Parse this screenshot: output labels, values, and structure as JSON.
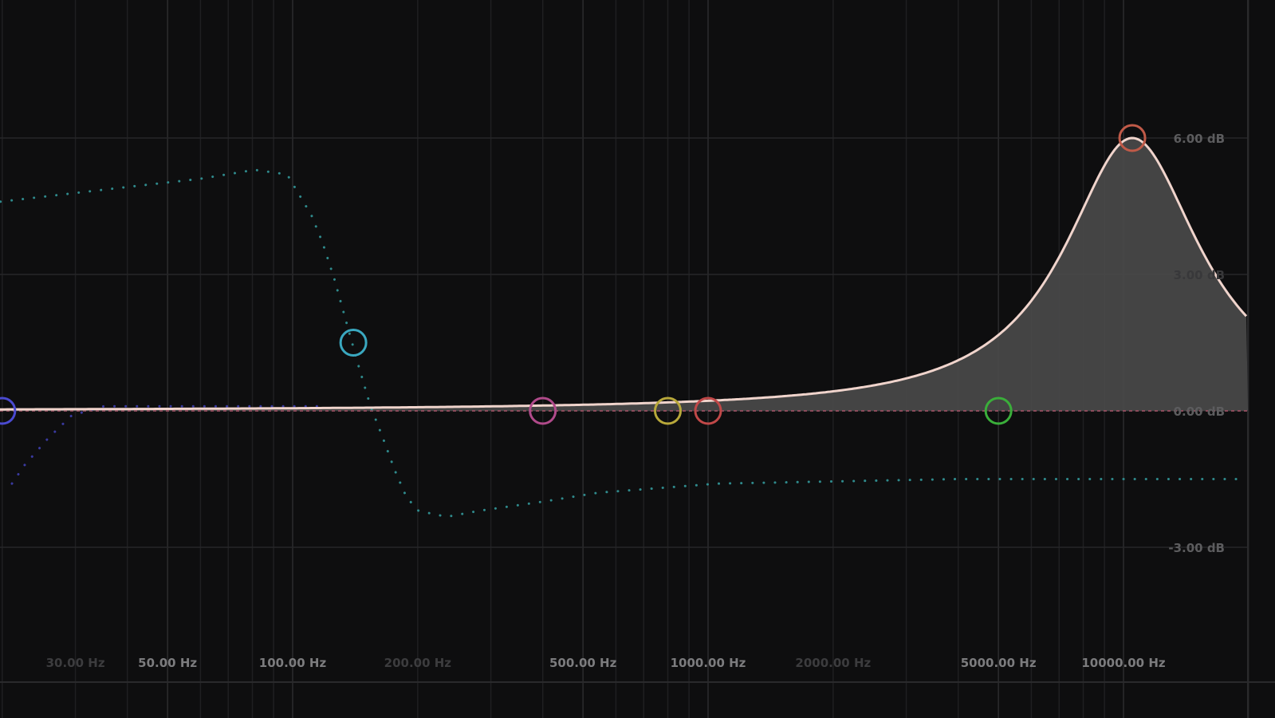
{
  "chart_data": {
    "type": "line",
    "x_scale": "log",
    "xlim_hz": [
      20,
      20000
    ],
    "ylim_db": [
      -9,
      9
    ],
    "grid": true,
    "x_ticks": [
      {
        "value": 30,
        "label": "30.00 Hz",
        "dim": true
      },
      {
        "value": 50,
        "label": "50.00 Hz",
        "dim": false
      },
      {
        "value": 100,
        "label": "100.00 Hz",
        "dim": false
      },
      {
        "value": 200,
        "label": "200.00 Hz",
        "dim": true
      },
      {
        "value": 500,
        "label": "500.00 Hz",
        "dim": false
      },
      {
        "value": 1000,
        "label": "1000.00 Hz",
        "dim": false
      },
      {
        "value": 2000,
        "label": "2000.00 Hz",
        "dim": true
      },
      {
        "value": 5000,
        "label": "5000.00 Hz",
        "dim": false
      },
      {
        "value": 10000,
        "label": "10000.00 Hz",
        "dim": false
      }
    ],
    "y_ticks": [
      {
        "value": 6,
        "label": "6.00 dB",
        "dim": false
      },
      {
        "value": 3,
        "label": "3.00 dB",
        "dim": true
      },
      {
        "value": 0,
        "label": "0.00 dB",
        "dim": false
      },
      {
        "value": -3,
        "label": "-3.00 dB",
        "dim": false
      }
    ],
    "bands": [
      {
        "freq": 20,
        "gain": 0,
        "color": "#4a4ad0"
      },
      {
        "freq": 140,
        "gain": 1.5,
        "color": "#3aa8c0"
      },
      {
        "freq": 400,
        "gain": 0,
        "color": "#b04a8a"
      },
      {
        "freq": 800,
        "gain": 0,
        "color": "#b8a83a"
      },
      {
        "freq": 1000,
        "gain": 0,
        "color": "#c04848"
      },
      {
        "freq": 5000,
        "gain": 0,
        "color": "#3aae3a"
      },
      {
        "freq": 10500,
        "gain": 6,
        "color": "#c05a48"
      }
    ],
    "response": {
      "peak_freq": 10500,
      "peak_gain": 6,
      "width_decades": 0.2,
      "color": "#f0d4cc",
      "fill": "#4a4a4a"
    },
    "preview_series": [
      {
        "color": "#2f8a8c",
        "points": [
          [
            19.8,
            4.6
          ],
          [
            38,
            4.9
          ],
          [
            59.6,
            5.1
          ],
          [
            81,
            5.3
          ],
          [
            97,
            5.2
          ],
          [
            111,
            4.3
          ],
          [
            118,
            3.7
          ],
          [
            126,
            2.9
          ],
          [
            139,
            1.5
          ],
          [
            144,
            1.0
          ],
          [
            154,
            0.1
          ],
          [
            165,
            -0.6
          ],
          [
            176,
            -1.3
          ],
          [
            188,
            -1.9
          ],
          [
            201,
            -2.2
          ],
          [
            235,
            -2.33
          ],
          [
            280,
            -2.2
          ],
          [
            398,
            -2.0
          ],
          [
            544,
            -1.8
          ],
          [
            1055,
            -1.6
          ],
          [
            3960,
            -1.5
          ],
          [
            19800,
            -1.5
          ]
        ]
      },
      {
        "color": "#3a3aa0",
        "points": [
          [
            21.1,
            -1.6
          ],
          [
            22.6,
            -1.2
          ],
          [
            25.8,
            -0.6
          ],
          [
            29.4,
            -0.1
          ],
          [
            35.1,
            0.1
          ],
          [
            120,
            0.1
          ]
        ]
      }
    ]
  }
}
